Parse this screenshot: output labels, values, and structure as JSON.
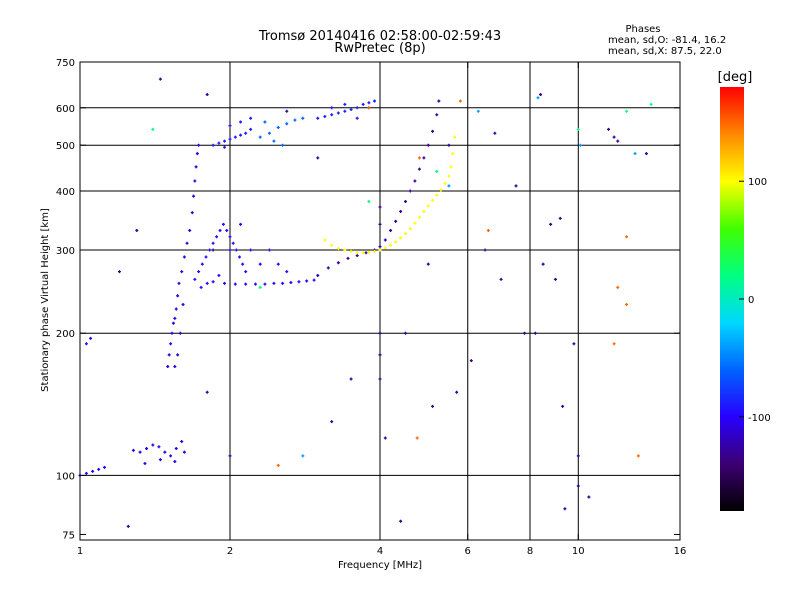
{
  "chart_data": {
    "type": "scatter",
    "title": "Tromsø 20140416 02:58:00-02:59:43",
    "subtitle": "RwPretec (8p)",
    "xlabel": "Frequency [MHz]",
    "ylabel": "Stationary phase Virtual Height [km]",
    "x_scale": "log",
    "y_scale": "log",
    "xlim": [
      1,
      16
    ],
    "ylim": [
      73,
      750
    ],
    "x_ticks": [
      1,
      2,
      4,
      6,
      8,
      10,
      16
    ],
    "x_tick_labels": [
      "1",
      "2",
      "4",
      "6",
      "8",
      "10",
      "16"
    ],
    "y_ticks": [
      75,
      100,
      200,
      300,
      400,
      500,
      600,
      750
    ],
    "y_tick_labels": [
      "75",
      "100",
      "200",
      "300",
      "400",
      "500",
      "600",
      "750"
    ],
    "x_grid_lines": [
      2,
      4,
      6,
      8,
      10
    ],
    "y_grid_lines": [
      100,
      200,
      300,
      400,
      500,
      600
    ],
    "phase_stats": {
      "title": "Phases",
      "line1": "mean, sd,O: -81.4, 16.2",
      "line2": "mean, sd,X:  87.5, 22.0"
    },
    "colorbar": {
      "label": "[deg]",
      "min": -180,
      "max": 180,
      "ticks": [
        100,
        0,
        -100
      ],
      "tick_labels": [
        "100",
        "0",
        "-100"
      ],
      "stops": [
        "#000000",
        "#3c0072",
        "#2800ff",
        "#0064ff",
        "#00d8ff",
        "#00ff80",
        "#40ff00",
        "#ffff00",
        "#ff8800",
        "#ff0000"
      ]
    },
    "traces": [
      {
        "name": "",
        "phase": -100,
        "points": [
          [
            1.0,
            100
          ],
          [
            1.03,
            101
          ],
          [
            1.06,
            102
          ],
          [
            1.09,
            103
          ],
          [
            1.12,
            104
          ],
          [
            1.03,
            190
          ],
          [
            1.05,
            195
          ]
        ]
      },
      {
        "name": "",
        "phase": -105,
        "points": [
          [
            1.28,
            113
          ],
          [
            1.32,
            112
          ],
          [
            1.36,
            114
          ],
          [
            1.4,
            116
          ],
          [
            1.44,
            115
          ],
          [
            1.48,
            112
          ],
          [
            1.52,
            110
          ],
          [
            1.56,
            114
          ],
          [
            1.6,
            118
          ],
          [
            1.35,
            106
          ],
          [
            1.45,
            108
          ],
          [
            1.55,
            107
          ],
          [
            1.62,
            112
          ]
        ]
      },
      {
        "name": "",
        "phase": -110,
        "points": [
          [
            1.5,
            170
          ],
          [
            1.51,
            180
          ],
          [
            1.52,
            190
          ],
          [
            1.53,
            200
          ],
          [
            1.54,
            210
          ],
          [
            1.55,
            215
          ],
          [
            1.56,
            225
          ],
          [
            1.57,
            240
          ],
          [
            1.58,
            255
          ],
          [
            1.6,
            270
          ],
          [
            1.62,
            290
          ],
          [
            1.64,
            310
          ],
          [
            1.66,
            330
          ],
          [
            1.68,
            360
          ],
          [
            1.69,
            390
          ],
          [
            1.7,
            420
          ],
          [
            1.71,
            450
          ],
          [
            1.72,
            480
          ],
          [
            1.73,
            500
          ],
          [
            1.55,
            170
          ],
          [
            1.57,
            180
          ],
          [
            1.59,
            200
          ],
          [
            1.61,
            230
          ]
        ]
      },
      {
        "name": "",
        "phase": -95,
        "points": [
          [
            1.7,
            260
          ],
          [
            1.73,
            270
          ],
          [
            1.76,
            280
          ],
          [
            1.79,
            290
          ],
          [
            1.82,
            300
          ],
          [
            1.85,
            310
          ],
          [
            1.88,
            320
          ],
          [
            1.91,
            330
          ],
          [
            1.94,
            340
          ],
          [
            1.97,
            330
          ],
          [
            2.0,
            320
          ],
          [
            2.03,
            310
          ],
          [
            2.06,
            300
          ],
          [
            2.09,
            290
          ],
          [
            2.12,
            280
          ],
          [
            2.15,
            270
          ],
          [
            1.75,
            250
          ],
          [
            1.8,
            255
          ],
          [
            1.9,
            265
          ],
          [
            2.0,
            300
          ],
          [
            2.1,
            340
          ],
          [
            2.2,
            300
          ],
          [
            2.3,
            280
          ],
          [
            2.4,
            300
          ],
          [
            2.5,
            280
          ],
          [
            2.6,
            270
          ]
        ]
      },
      {
        "name": "",
        "phase": -98,
        "points": [
          [
            1.85,
            257
          ],
          [
            1.95,
            255
          ],
          [
            2.05,
            254
          ],
          [
            2.15,
            254
          ],
          [
            2.25,
            254
          ],
          [
            2.35,
            254
          ],
          [
            2.45,
            255
          ],
          [
            2.55,
            255
          ],
          [
            2.65,
            256
          ],
          [
            2.75,
            257
          ],
          [
            2.85,
            258
          ],
          [
            2.95,
            259
          ]
        ]
      },
      {
        "name": "",
        "phase": -90,
        "points": [
          [
            1.85,
            500
          ],
          [
            1.9,
            505
          ],
          [
            1.95,
            510
          ],
          [
            2.0,
            515
          ],
          [
            2.05,
            520
          ],
          [
            2.1,
            525
          ],
          [
            2.15,
            530
          ],
          [
            2.2,
            540
          ],
          [
            2.0,
            550
          ],
          [
            2.1,
            560
          ],
          [
            2.2,
            570
          ],
          [
            1.95,
            495
          ]
        ]
      },
      {
        "name": "",
        "phase": -60,
        "points": [
          [
            2.3,
            520
          ],
          [
            2.4,
            530
          ],
          [
            2.5,
            545
          ],
          [
            2.6,
            555
          ],
          [
            2.7,
            565
          ],
          [
            2.8,
            570
          ],
          [
            2.45,
            510
          ],
          [
            2.55,
            500
          ],
          [
            2.35,
            560
          ]
        ]
      },
      {
        "name": "",
        "phase": -88,
        "points": [
          [
            3.0,
            570
          ],
          [
            3.1,
            575
          ],
          [
            3.2,
            580
          ],
          [
            3.3,
            585
          ],
          [
            3.4,
            590
          ],
          [
            3.5,
            595
          ],
          [
            3.6,
            600
          ],
          [
            3.7,
            610
          ],
          [
            3.8,
            615
          ],
          [
            3.9,
            620
          ],
          [
            3.2,
            600
          ],
          [
            3.4,
            610
          ],
          [
            3.6,
            570
          ],
          [
            3.8,
            600
          ]
        ]
      },
      {
        "name": "",
        "phase": -128,
        "points": [
          [
            3.0,
            265
          ],
          [
            3.15,
            275
          ],
          [
            3.3,
            282
          ],
          [
            3.45,
            288
          ],
          [
            3.6,
            292
          ],
          [
            3.75,
            296
          ],
          [
            3.9,
            300
          ],
          [
            4.0,
            305
          ],
          [
            4.1,
            315
          ],
          [
            4.2,
            330
          ],
          [
            4.3,
            345
          ],
          [
            4.4,
            362
          ],
          [
            4.5,
            380
          ],
          [
            4.6,
            400
          ],
          [
            4.7,
            420
          ],
          [
            4.8,
            445
          ],
          [
            4.9,
            470
          ],
          [
            5.0,
            500
          ],
          [
            5.1,
            535
          ],
          [
            5.2,
            580
          ],
          [
            5.25,
            620
          ]
        ]
      },
      {
        "name": "",
        "phase": 100,
        "points": [
          [
            3.1,
            315
          ],
          [
            3.2,
            307
          ],
          [
            3.3,
            302
          ],
          [
            3.4,
            300
          ],
          [
            3.5,
            298
          ],
          [
            3.6,
            296
          ],
          [
            3.7,
            296
          ],
          [
            3.8,
            297
          ],
          [
            3.9,
            298
          ],
          [
            4.0,
            300
          ],
          [
            4.1,
            303
          ],
          [
            4.2,
            307
          ],
          [
            4.3,
            312
          ],
          [
            4.4,
            318
          ],
          [
            4.5,
            325
          ],
          [
            4.6,
            333
          ],
          [
            4.7,
            342
          ],
          [
            4.8,
            352
          ],
          [
            4.9,
            362
          ],
          [
            5.0,
            372
          ],
          [
            5.1,
            382
          ],
          [
            5.2,
            392
          ],
          [
            5.3,
            402
          ],
          [
            5.4,
            415
          ],
          [
            5.5,
            430
          ],
          [
            5.55,
            450
          ],
          [
            5.6,
            480
          ],
          [
            5.65,
            520
          ]
        ]
      },
      {
        "name": "",
        "phase": 20,
        "points": [
          [
            1.4,
            540
          ],
          [
            2.3,
            250
          ],
          [
            3.8,
            380
          ],
          [
            5.2,
            440
          ],
          [
            10.0,
            540
          ],
          [
            12.5,
            590
          ],
          [
            14.0,
            610
          ]
        ]
      },
      {
        "name": "",
        "phase": -40,
        "points": [
          [
            2.8,
            110
          ],
          [
            5.5,
            410
          ],
          [
            6.3,
            590
          ],
          [
            10.1,
            500
          ],
          [
            13.0,
            480
          ],
          [
            8.3,
            630
          ]
        ]
      },
      {
        "name": "",
        "phase": 150,
        "points": [
          [
            2.5,
            105
          ],
          [
            3.8,
            600
          ],
          [
            4.8,
            470
          ],
          [
            6.6,
            330
          ],
          [
            11.8,
            190
          ],
          [
            12.0,
            250
          ],
          [
            12.5,
            320
          ],
          [
            12.5,
            230
          ],
          [
            13.2,
            110
          ],
          [
            4.75,
            120
          ],
          [
            5.8,
            620
          ]
        ]
      },
      {
        "name": "",
        "phase": -130,
        "points": [
          [
            1.45,
            690
          ],
          [
            1.8,
            640
          ],
          [
            2.6,
            590
          ],
          [
            3.0,
            470
          ],
          [
            4.0,
            370
          ],
          [
            4.0,
            340
          ],
          [
            4.0,
            200
          ],
          [
            4.0,
            180
          ],
          [
            4.0,
            160
          ],
          [
            4.1,
            120
          ],
          [
            4.4,
            80
          ],
          [
            5.1,
            140
          ],
          [
            5.0,
            280
          ],
          [
            5.5,
            500
          ],
          [
            6.5,
            300
          ],
          [
            6.8,
            530
          ],
          [
            7.0,
            260
          ],
          [
            7.5,
            410
          ],
          [
            8.2,
            200
          ],
          [
            8.4,
            640
          ],
          [
            8.5,
            280
          ],
          [
            8.8,
            340
          ],
          [
            9.0,
            260
          ],
          [
            9.2,
            350
          ],
          [
            9.3,
            140
          ],
          [
            9.4,
            85
          ],
          [
            9.8,
            190
          ],
          [
            10.0,
            95
          ],
          [
            10.0,
            110
          ],
          [
            10.5,
            90
          ],
          [
            11.5,
            540
          ],
          [
            11.8,
            520
          ],
          [
            12.0,
            510
          ],
          [
            13.7,
            480
          ],
          [
            1.25,
            78
          ],
          [
            1.3,
            330
          ],
          [
            1.2,
            270
          ],
          [
            1.85,
            300
          ],
          [
            3.2,
            130
          ],
          [
            3.5,
            160
          ],
          [
            1.8,
            150
          ],
          [
            2.0,
            110
          ],
          [
            7.8,
            200
          ],
          [
            6.1,
            175
          ],
          [
            5.7,
            150
          ],
          [
            4.5,
            200
          ]
        ]
      }
    ]
  }
}
